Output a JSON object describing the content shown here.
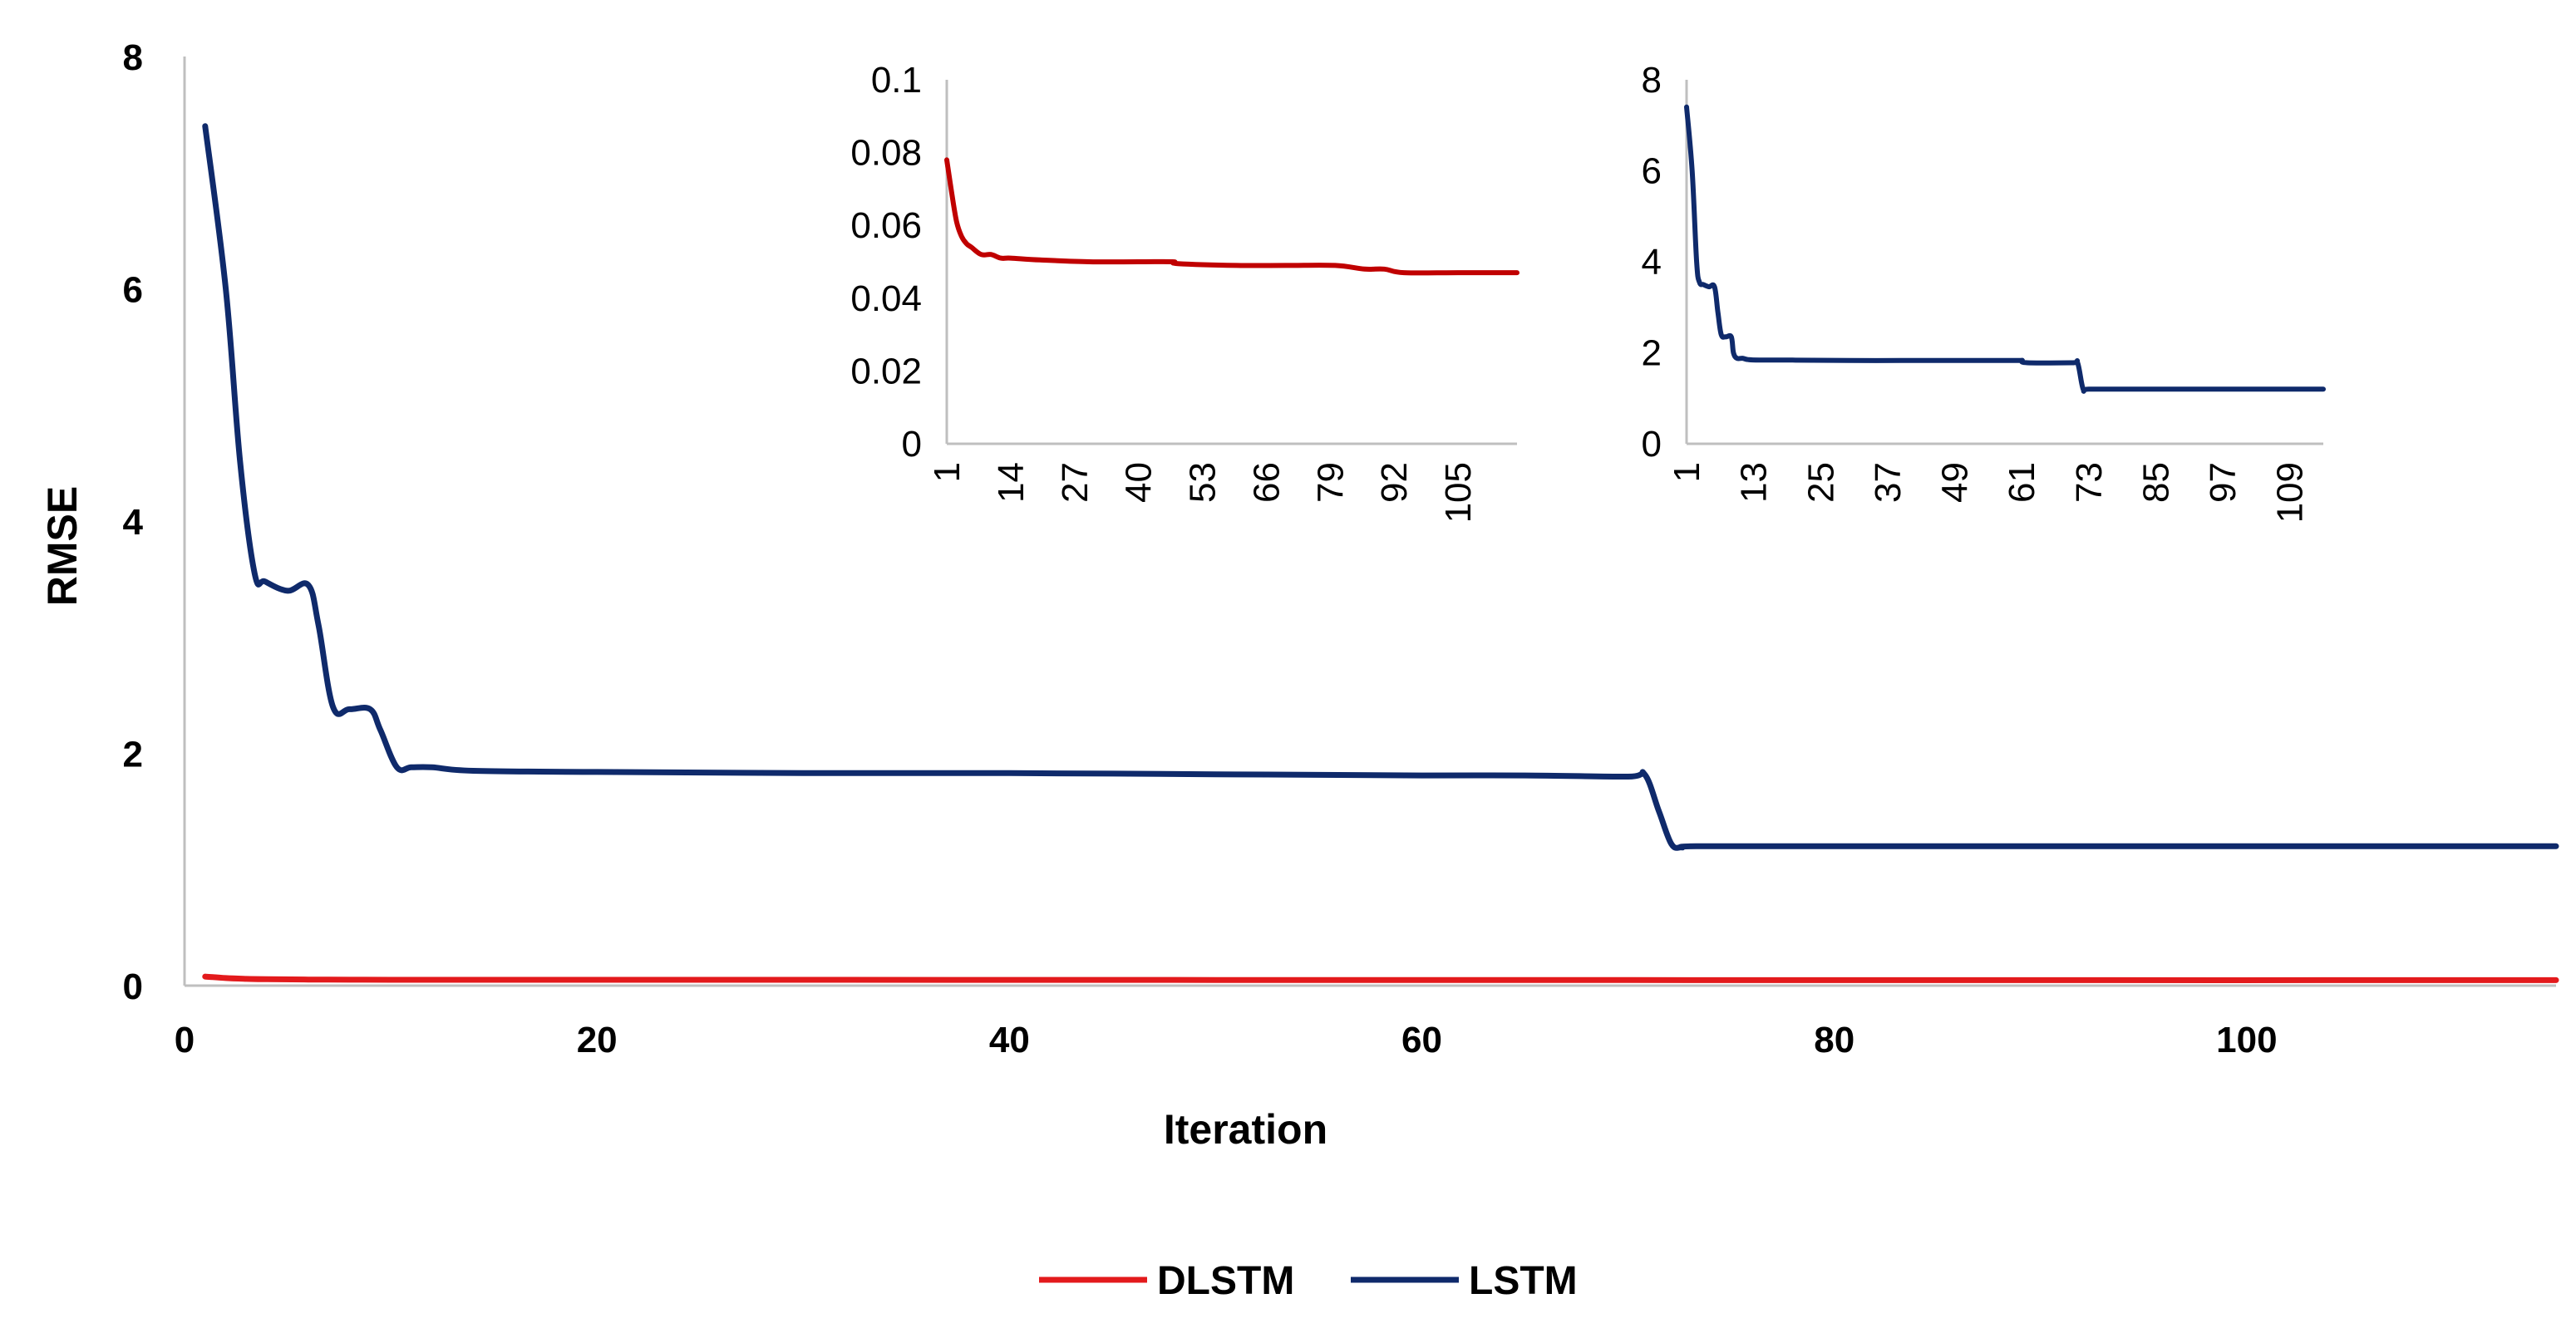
{
  "colors": {
    "dlstm": "#e31a1c",
    "lstm": "#0f2a6b",
    "inset_dlstm": "#c00000"
  },
  "chart_data": [
    {
      "type": "line",
      "id": "main",
      "title": "",
      "xlabel": "Iteration",
      "ylabel": "RMSE",
      "xlim": [
        0,
        115
      ],
      "ylim": [
        0,
        8
      ],
      "xticks": [
        0,
        20,
        40,
        60,
        80,
        100
      ],
      "yticks": [
        0,
        2,
        4,
        6,
        8
      ],
      "legend": "bottom-center",
      "series": [
        {
          "name": "DLSTM",
          "x": [
            1,
            2,
            3,
            4,
            6,
            8,
            10,
            14,
            20,
            30,
            50,
            70,
            90,
            115
          ],
          "values": [
            0.078,
            0.065,
            0.058,
            0.055,
            0.052,
            0.051,
            0.05,
            0.05,
            0.05,
            0.05,
            0.049,
            0.048,
            0.047,
            0.047
          ]
        },
        {
          "name": "LSTM",
          "x": [
            1,
            2,
            2.7,
            3.4,
            3.9,
            5,
            6,
            6.5,
            7.2,
            8,
            9,
            9.5,
            10.3,
            11,
            12,
            14,
            20,
            30,
            40,
            50,
            60,
            65,
            70,
            70.8,
            71.5,
            72.1,
            72.6,
            73.3,
            80,
            90,
            100,
            115
          ],
          "values": [
            7.4,
            6.0,
            4.5,
            3.55,
            3.48,
            3.4,
            3.45,
            3.1,
            2.4,
            2.38,
            2.38,
            2.2,
            1.88,
            1.88,
            1.88,
            1.85,
            1.84,
            1.83,
            1.83,
            1.82,
            1.81,
            1.81,
            1.8,
            1.82,
            1.5,
            1.22,
            1.19,
            1.2,
            1.2,
            1.2,
            1.2,
            1.2
          ]
        }
      ]
    },
    {
      "type": "line",
      "id": "inset-dlstm",
      "title": "",
      "xlabel": "",
      "ylabel": "",
      "xlim": [
        1,
        117
      ],
      "ylim": [
        0,
        0.1
      ],
      "xticks": [
        1,
        14,
        27,
        40,
        53,
        66,
        79,
        92,
        105
      ],
      "xtick_labels": [
        "1",
        "14",
        "27",
        "40",
        "53",
        "66",
        "79",
        "92",
        "105"
      ],
      "yticks": [
        0,
        0.02,
        0.04,
        0.06,
        0.08,
        0.1
      ],
      "ytick_labels": [
        "0",
        "0.02",
        "0.04",
        "0.06",
        "0.08",
        "0.1"
      ],
      "series": [
        {
          "name": "DLSTM",
          "x": [
            1,
            2,
            3,
            4,
            5,
            6,
            8,
            10,
            12,
            14,
            20,
            30,
            40,
            47,
            48,
            60,
            70,
            80,
            86,
            90,
            94,
            105,
            117
          ],
          "values": [
            0.078,
            0.069,
            0.061,
            0.057,
            0.055,
            0.054,
            0.052,
            0.052,
            0.051,
            0.051,
            0.0505,
            0.05,
            0.05,
            0.05,
            0.0495,
            0.049,
            0.049,
            0.049,
            0.048,
            0.048,
            0.047,
            0.047,
            0.047
          ]
        }
      ]
    },
    {
      "type": "line",
      "id": "inset-lstm",
      "title": "",
      "xlabel": "",
      "ylabel": "",
      "xlim": [
        1,
        115
      ],
      "ylim": [
        0,
        8
      ],
      "xticks": [
        1,
        13,
        25,
        37,
        49,
        61,
        73,
        85,
        97,
        109
      ],
      "xtick_labels": [
        "1",
        "13",
        "25",
        "37",
        "49",
        "61",
        "73",
        "85",
        "97",
        "109"
      ],
      "yticks": [
        0,
        2,
        4,
        6,
        8
      ],
      "ytick_labels": [
        "0",
        "2",
        "4",
        "6",
        "8"
      ],
      "series": [
        {
          "name": "LSTM",
          "x": [
            1,
            2,
            2.8,
            3.3,
            4,
            5,
            6,
            6.6,
            7.2,
            8,
            9,
            9.4,
            10,
            11,
            12,
            14,
            20,
            30,
            40,
            50,
            60,
            61,
            62,
            70,
            71,
            72,
            73,
            80,
            90,
            100,
            115
          ],
          "values": [
            7.4,
            6.0,
            4.0,
            3.55,
            3.5,
            3.45,
            3.45,
            2.9,
            2.4,
            2.35,
            2.35,
            2.0,
            1.88,
            1.88,
            1.85,
            1.84,
            1.84,
            1.83,
            1.83,
            1.83,
            1.83,
            1.83,
            1.78,
            1.78,
            1.78,
            1.2,
            1.2,
            1.2,
            1.2,
            1.2,
            1.2
          ]
        }
      ]
    }
  ]
}
